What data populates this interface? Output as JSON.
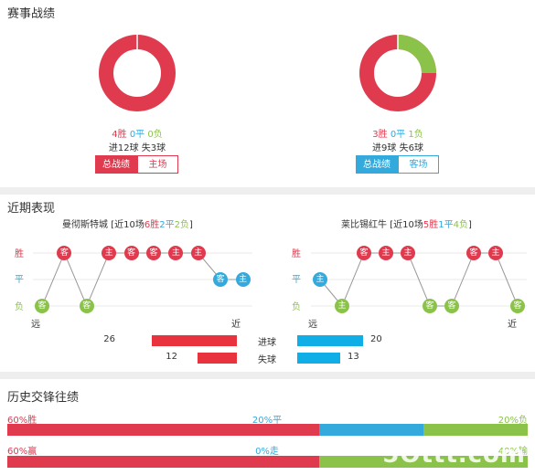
{
  "record": {
    "title": "赛事战绩",
    "left": {
      "wins": "4胜",
      "draws": "0平",
      "losses": "0负",
      "goals": "进12球",
      "conceded": "失3球",
      "win_share": 1.0,
      "draw_share": 0.0,
      "loss_share": 0.0,
      "btn_active": "总战绩",
      "btn_other": "主场"
    },
    "right": {
      "wins": "3胜",
      "draws": "0平",
      "losses": "1负",
      "goals": "进9球",
      "conceded": "失6球",
      "win_share": 0.75,
      "draw_share": 0.0,
      "loss_share": 0.25,
      "btn_active": "总战绩",
      "btn_other": "客场"
    }
  },
  "recent": {
    "title": "近期表现",
    "left_team": {
      "name": "曼彻斯特城",
      "summary_prefix": "[近10场",
      "wins": "6胜",
      "draws": "2平",
      "losses": "2负",
      "summary_suffix": "]"
    },
    "right_team": {
      "name": "莱比锡红牛",
      "summary_prefix": "[近10场",
      "wins": "5胜",
      "draws": "1平",
      "losses": "4负",
      "summary_suffix": "]"
    },
    "axis_labels": {
      "win": "胜",
      "draw": "平",
      "loss": "负"
    },
    "far_label": "远",
    "near_label": "近",
    "left_results": [
      {
        "r": "L",
        "venue": "客"
      },
      {
        "r": "W",
        "venue": "客"
      },
      {
        "r": "L",
        "venue": "客"
      },
      {
        "r": "W",
        "venue": "主"
      },
      {
        "r": "W",
        "venue": "客"
      },
      {
        "r": "W",
        "venue": "客"
      },
      {
        "r": "W",
        "venue": "主"
      },
      {
        "r": "W",
        "venue": "主"
      },
      {
        "r": "D",
        "venue": "客"
      },
      {
        "r": "D",
        "venue": "主"
      }
    ],
    "right_results": [
      {
        "r": "D",
        "venue": "主"
      },
      {
        "r": "L",
        "venue": "主"
      },
      {
        "r": "W",
        "venue": "客"
      },
      {
        "r": "W",
        "venue": "主"
      },
      {
        "r": "W",
        "venue": "主"
      },
      {
        "r": "L",
        "venue": "客"
      },
      {
        "r": "L",
        "venue": "客"
      },
      {
        "r": "W",
        "venue": "客"
      },
      {
        "r": "W",
        "venue": "主"
      },
      {
        "r": "L",
        "venue": "客"
      }
    ],
    "goals_label": "进球",
    "conceded_label": "失球",
    "left_goals": 26,
    "left_conceded": 12,
    "right_goals": 20,
    "right_conceded": 13,
    "max_goals": 26
  },
  "h2h": {
    "title": "历史交锋往绩",
    "row1": {
      "left": "60%胜",
      "mid": "20%平",
      "right": "20%负",
      "a": 0.6,
      "b": 0.2,
      "c": 0.2
    },
    "row2": {
      "left": "60%赢",
      "mid": "0%走",
      "right": "40%输",
      "a": 0.6,
      "b": 0.0,
      "c": 0.4
    }
  },
  "colors": {
    "win": "#e03a4e",
    "draw": "#34aadc",
    "loss": "#8bc34a"
  },
  "watermark": "5Ottt.com"
}
